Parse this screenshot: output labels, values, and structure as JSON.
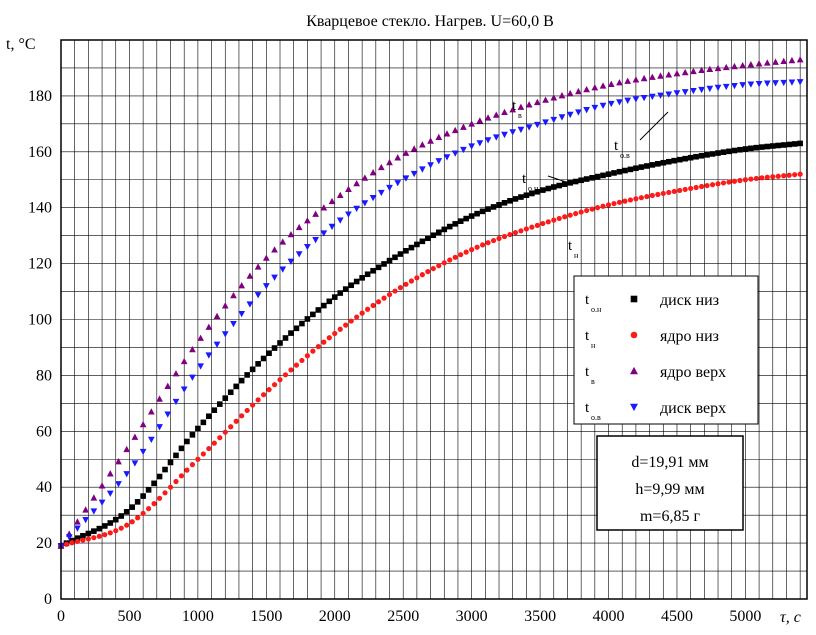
{
  "chart_data": {
    "type": "scatter",
    "title": "Кварцевое стекло. Нагрев. U=60,0 В",
    "xlabel": "τ, с",
    "ylabel": "t, °С",
    "xlim": [
      0,
      5450
    ],
    "ylim": [
      0,
      200
    ],
    "grid": true,
    "x_ticks": [
      "0",
      "500",
      "1000",
      "1500",
      "2000",
      "2500",
      "3000",
      "3500",
      "4000",
      "4500",
      "5000"
    ],
    "y_ticks": [
      "0",
      "20",
      "40",
      "60",
      "80",
      "100",
      "120",
      "140",
      "160",
      "180"
    ],
    "legend_placement": "right",
    "series": [
      {
        "name": "диск низ",
        "label_main": "t",
        "label_sub": "о.н",
        "marker": "square",
        "color": "#000000",
        "x": [
          0,
          500,
          1000,
          1500,
          2000,
          2500,
          3000,
          3500,
          4000,
          4500,
          5000,
          5400
        ],
        "y": [
          19,
          32,
          61,
          87,
          108,
          124,
          137,
          146,
          152,
          157,
          161,
          163
        ]
      },
      {
        "name": "ядро низ",
        "label_main": "t",
        "label_sub": "н",
        "marker": "circle",
        "color": "#ff1a1a",
        "x": [
          0,
          500,
          1000,
          1500,
          2000,
          2500,
          3000,
          3500,
          4000,
          4500,
          5000,
          5400
        ],
        "y": [
          19,
          27,
          50,
          74,
          95,
          112,
          125,
          134,
          141,
          146,
          150,
          152
        ]
      },
      {
        "name": "ядро верх",
        "label_main": "t",
        "label_sub": "в",
        "marker": "triangle-up",
        "color": "#800080",
        "x": [
          0,
          500,
          1000,
          1500,
          2000,
          2500,
          3000,
          3500,
          4000,
          4500,
          5000,
          5400
        ],
        "y": [
          19,
          55,
          92,
          122,
          143,
          159,
          170,
          178,
          184,
          188,
          191,
          193
        ]
      },
      {
        "name": "диск верх",
        "label_main": "t",
        "label_sub": "о.в",
        "marker": "triangle-down",
        "color": "#1a1aff",
        "x": [
          0,
          500,
          1000,
          1500,
          2000,
          2500,
          3000,
          3500,
          4000,
          4500,
          5000,
          5400
        ],
        "y": [
          19,
          46,
          82,
          112,
          134,
          150,
          162,
          170,
          177,
          181,
          184,
          185
        ]
      }
    ],
    "annotations": [
      {
        "main": "t",
        "sub": "в"
      },
      {
        "main": "t",
        "sub": "о.в"
      },
      {
        "main": "t",
        "sub": "о.н"
      },
      {
        "main": "t",
        "sub": "н"
      }
    ],
    "info_box": [
      "d=19,91 мм",
      "h=9,99 мм",
      "m=6,85 г"
    ]
  }
}
